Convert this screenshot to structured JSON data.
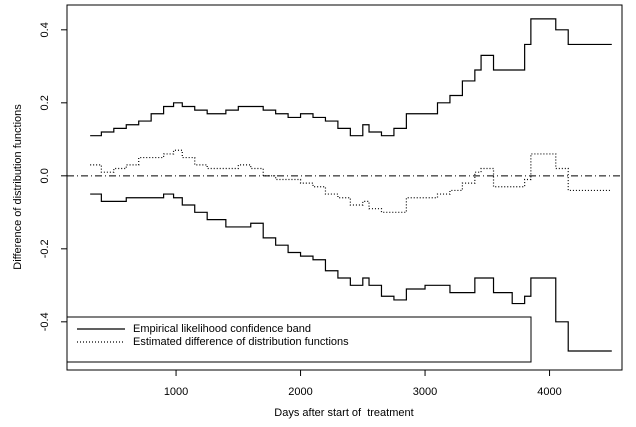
{
  "chart_data": {
    "type": "step",
    "x_label": "Days after start of  treatment",
    "y_label": "Difference of distribution functions",
    "x": [
      310,
      400,
      500,
      600,
      700,
      800,
      900,
      980,
      1050,
      1150,
      1250,
      1400,
      1500,
      1600,
      1700,
      1800,
      1900,
      2000,
      2100,
      2200,
      2300,
      2400,
      2500,
      2550,
      2650,
      2750,
      2850,
      3000,
      3100,
      3200,
      3300,
      3400,
      3450,
      3550,
      3700,
      3800,
      3850,
      4050,
      4150,
      4500
    ],
    "series": [
      {
        "name": "Empirical likelihood confidence band",
        "color": "#000000",
        "style": "solid",
        "upper": [
          0.11,
          0.12,
          0.13,
          0.14,
          0.15,
          0.17,
          0.19,
          0.2,
          0.19,
          0.18,
          0.17,
          0.18,
          0.19,
          0.19,
          0.18,
          0.17,
          0.16,
          0.17,
          0.16,
          0.15,
          0.13,
          0.11,
          0.14,
          0.12,
          0.11,
          0.13,
          0.17,
          0.17,
          0.2,
          0.22,
          0.26,
          0.29,
          0.33,
          0.29,
          0.29,
          0.36,
          0.43,
          0.4,
          0.36,
          0.36
        ],
        "lower": [
          -0.05,
          -0.07,
          -0.07,
          -0.06,
          -0.06,
          -0.06,
          -0.05,
          -0.06,
          -0.08,
          -0.1,
          -0.12,
          -0.14,
          -0.14,
          -0.13,
          -0.17,
          -0.19,
          -0.21,
          -0.22,
          -0.23,
          -0.26,
          -0.28,
          -0.3,
          -0.28,
          -0.3,
          -0.33,
          -0.34,
          -0.31,
          -0.3,
          -0.3,
          -0.32,
          -0.32,
          -0.28,
          -0.28,
          -0.32,
          -0.35,
          -0.33,
          -0.28,
          -0.4,
          -0.48,
          -0.48
        ]
      },
      {
        "name": "Estimated difference of distribution functions",
        "color": "#000000",
        "style": "dotted",
        "values": [
          0.03,
          0.01,
          0.02,
          0.03,
          0.05,
          0.05,
          0.06,
          0.07,
          0.05,
          0.03,
          0.02,
          0.02,
          0.03,
          0.02,
          0.0,
          -0.01,
          -0.01,
          -0.02,
          -0.03,
          -0.05,
          -0.06,
          -0.08,
          -0.07,
          -0.09,
          -0.1,
          -0.1,
          -0.06,
          -0.06,
          -0.05,
          -0.04,
          -0.02,
          0.01,
          0.02,
          -0.03,
          -0.03,
          -0.01,
          0.06,
          0.02,
          -0.04,
          -0.04
        ]
      }
    ],
    "reference_line": 0,
    "xlim": [
      124,
      4582
    ],
    "xticks": [
      1000,
      2000,
      3000,
      4000
    ],
    "ylim": [
      -0.532,
      0.468
    ],
    "yticks": [
      -0.4,
      -0.2,
      {
        "value": 0,
        "label": "0.0"
      },
      0.2,
      0.4
    ],
    "legend": "bottomleft"
  }
}
